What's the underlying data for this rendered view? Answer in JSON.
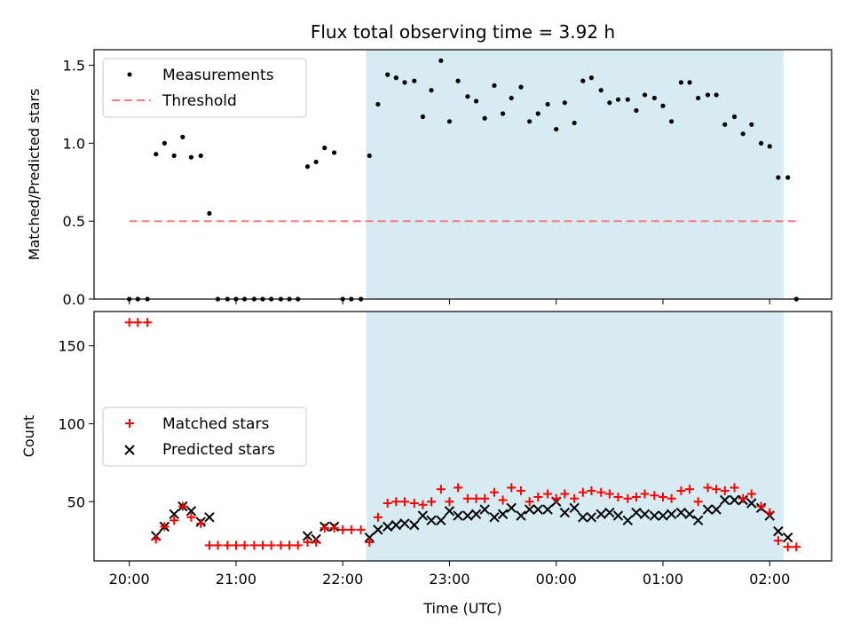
{
  "chart_data": [
    {
      "type": "scatter",
      "title": "Flux total observing time = 3.92 h",
      "xlabel": "",
      "ylabel": "Matched/Predicted stars",
      "ylim": [
        0,
        1.6
      ],
      "yticks": [
        "0.0",
        "0.5",
        "1.0",
        "1.5"
      ],
      "legend": {
        "placement": "top-left",
        "entries": [
          "Measurements",
          "Threshold"
        ]
      },
      "colors": {
        "measurements": "#000000",
        "threshold": "#f08080",
        "highlight": "#add8e6"
      },
      "highlight_span": {
        "start": 22.22,
        "end": 26.13
      },
      "threshold": {
        "y": 0.5,
        "x_range": [
          20.0,
          26.25
        ]
      },
      "series": [
        {
          "name": "Measurements",
          "x": [
            20.0,
            20.08,
            20.17,
            20.25,
            20.33,
            20.42,
            20.5,
            20.58,
            20.67,
            20.75,
            20.83,
            20.92,
            21.0,
            21.08,
            21.17,
            21.25,
            21.33,
            21.42,
            21.5,
            21.58,
            21.67,
            21.75,
            21.83,
            21.92,
            22.0,
            22.08,
            22.17,
            22.25,
            22.33,
            22.42,
            22.5,
            22.58,
            22.67,
            22.75,
            22.83,
            22.92,
            23.0,
            23.08,
            23.17,
            23.25,
            23.33,
            23.42,
            23.5,
            23.58,
            23.67,
            23.75,
            23.83,
            23.92,
            24.0,
            24.08,
            24.17,
            24.25,
            24.33,
            24.42,
            24.5,
            24.58,
            24.67,
            24.75,
            24.83,
            24.92,
            25.0,
            25.08,
            25.17,
            25.25,
            25.33,
            25.42,
            25.5,
            25.58,
            25.67,
            25.75,
            25.83,
            25.92,
            26.0,
            26.08,
            26.17,
            26.25
          ],
          "y": [
            0,
            0,
            0,
            0.93,
            1.0,
            0.92,
            1.04,
            0.91,
            0.92,
            0.55,
            0,
            0,
            0,
            0,
            0,
            0,
            0,
            0,
            0,
            0,
            0.85,
            0.88,
            0.97,
            0.94,
            0,
            0,
            0,
            0.92,
            1.25,
            1.44,
            1.42,
            1.39,
            1.4,
            1.17,
            1.34,
            1.53,
            1.14,
            1.4,
            1.3,
            1.27,
            1.16,
            1.37,
            1.19,
            1.29,
            1.36,
            1.14,
            1.19,
            1.25,
            1.09,
            1.26,
            1.13,
            1.4,
            1.42,
            1.34,
            1.26,
            1.28,
            1.28,
            1.21,
            1.31,
            1.29,
            1.24,
            1.14,
            1.39,
            1.39,
            1.29,
            1.31,
            1.31,
            1.12,
            1.17,
            1.06,
            1.12,
            1.0,
            0.98,
            0.78,
            0.78,
            0
          ]
        }
      ]
    },
    {
      "type": "scatter",
      "title": "",
      "xlabel": "Time (UTC)",
      "ylabel": "Count",
      "xlim": [
        19.67,
        26.58
      ],
      "ylim": [
        12,
        172
      ],
      "xticks": [
        "20:00",
        "21:00",
        "22:00",
        "23:00",
        "00:00",
        "01:00",
        "02:00"
      ],
      "yticks": [
        "50",
        "100",
        "150"
      ],
      "legend": {
        "placement": "center-left",
        "entries": [
          "Matched stars",
          "Predicted stars"
        ]
      },
      "colors": {
        "matched": "#ff0000",
        "predicted": "#000000",
        "highlight": "#add8e6"
      },
      "highlight_span": {
        "start": 22.22,
        "end": 26.13
      },
      "x": [
        20.0,
        20.08,
        20.17,
        20.25,
        20.33,
        20.42,
        20.5,
        20.58,
        20.67,
        20.75,
        20.83,
        20.92,
        21.0,
        21.08,
        21.17,
        21.25,
        21.33,
        21.42,
        21.5,
        21.58,
        21.67,
        21.75,
        21.83,
        21.92,
        22.0,
        22.08,
        22.17,
        22.25,
        22.33,
        22.42,
        22.5,
        22.58,
        22.67,
        22.75,
        22.83,
        22.92,
        23.0,
        23.08,
        23.17,
        23.25,
        23.33,
        23.42,
        23.5,
        23.58,
        23.67,
        23.75,
        23.83,
        23.92,
        24.0,
        24.08,
        24.17,
        24.25,
        24.33,
        24.42,
        24.5,
        24.58,
        24.67,
        24.75,
        24.83,
        24.92,
        25.0,
        25.08,
        25.17,
        25.25,
        25.33,
        25.42,
        25.5,
        25.58,
        25.67,
        25.75,
        25.83,
        25.92,
        26.0,
        26.08,
        26.17,
        26.25
      ],
      "series": [
        {
          "name": "Matched stars",
          "values": [
            165,
            165,
            165,
            26,
            34,
            38,
            47,
            40,
            36,
            22,
            22,
            22,
            22,
            22,
            22,
            22,
            22,
            22,
            22,
            22,
            24,
            24,
            33,
            33,
            32,
            32,
            32,
            24,
            40,
            49,
            50,
            50,
            49,
            48,
            50,
            58,
            50,
            59,
            52,
            52,
            52,
            56,
            51,
            59,
            57,
            50,
            53,
            55,
            52,
            55,
            52,
            56,
            57,
            56,
            55,
            53,
            52,
            53,
            55,
            54,
            53,
            52,
            57,
            58,
            50,
            59,
            58,
            57,
            59,
            52,
            55,
            47,
            43,
            25,
            21,
            21
          ]
        },
        {
          "name": "Predicted stars",
          "values": [
            null,
            null,
            null,
            28,
            34,
            42,
            47,
            44,
            37,
            40,
            null,
            null,
            null,
            null,
            null,
            null,
            null,
            null,
            null,
            null,
            28,
            26,
            34,
            34,
            null,
            null,
            null,
            27,
            32,
            34,
            35,
            36,
            35,
            41,
            38,
            38,
            44,
            41,
            41,
            42,
            45,
            40,
            42,
            46,
            41,
            45,
            45,
            45,
            50,
            43,
            46,
            40,
            40,
            42,
            43,
            41,
            38,
            43,
            42,
            41,
            41,
            42,
            43,
            42,
            38,
            45,
            45,
            51,
            51,
            51,
            49,
            46,
            41,
            31,
            27,
            null
          ]
        }
      ]
    }
  ]
}
